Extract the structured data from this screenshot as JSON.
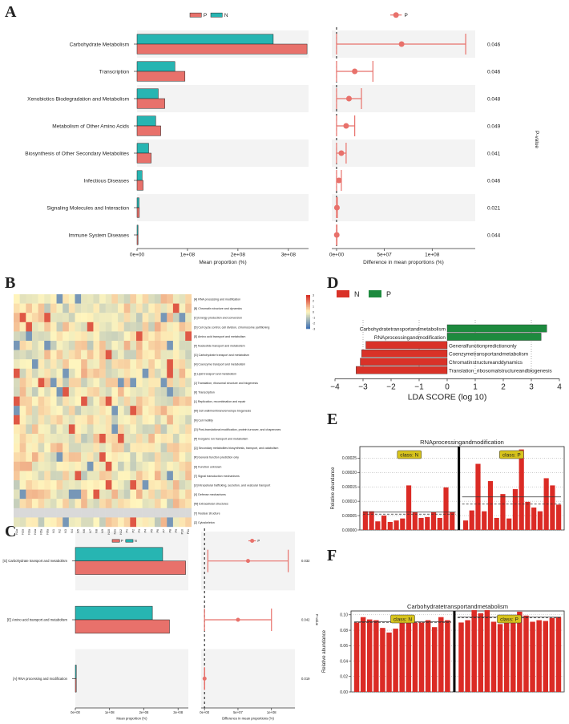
{
  "colors": {
    "P": "#e8716b",
    "N": "#27b5b2",
    "P_edge": "#8b2c25",
    "N_edge": "#136b68",
    "lda_N": "#d93228",
    "lda_P": "#1d8a3e",
    "bar_red": "#db2b25",
    "stripe": "#f3f3f3"
  },
  "panels": {
    "A": "A",
    "B": "B",
    "C": "C",
    "D": "D",
    "E": "E",
    "F": "F"
  },
  "chart_data": [
    {
      "id": "A",
      "type": "bar",
      "orientation": "horizontal",
      "legend_left": [
        "P",
        "N"
      ],
      "legend_right": [
        "P"
      ],
      "categories": [
        "Carbohydrate Metabolism",
        "Transcription",
        "Xenobiotics Biodegradation and Metabolism",
        "Metabolism of Other Amino Acids",
        "Biosynthesis of Other Secondary Metabolites",
        "Infectious Diseases",
        "Signaling Molecules and Interaction",
        "Immune System Diseases"
      ],
      "series": [
        {
          "name": "N",
          "values": [
            270000000,
            75000000,
            42000000,
            37000000,
            23000000,
            10000000,
            4000000,
            1000000
          ]
        },
        {
          "name": "P",
          "values": [
            337000000,
            95000000,
            55000000,
            47000000,
            28000000,
            12000000,
            4500000,
            1200000
          ]
        }
      ],
      "xlabel": "Mean proportion (%)",
      "xticks": [
        "0e+00",
        "1e+08",
        "2e+08",
        "3e+08"
      ],
      "xlim": [
        0,
        340000000
      ],
      "diff": {
        "mean": [
          68000000,
          19000000,
          13000000,
          10000000,
          5000000,
          2500000,
          400000,
          200000
        ],
        "lo": [
          0,
          0,
          0,
          0,
          0,
          0,
          0,
          0
        ],
        "hi": [
          135000000,
          38000000,
          26000000,
          19000000,
          10000000,
          5000000,
          800000,
          400000
        ]
      },
      "diff_xlabel": "Difference in mean proportions (%)",
      "diff_xticks": [
        "0e+00",
        "5e+07",
        "1e+08"
      ],
      "diff_xlim": [
        -5000000,
        145000000
      ],
      "pvalues": [
        "0.046",
        "0.046",
        "0.048",
        "0.049",
        "0.041",
        "0.046",
        "0.021",
        "0.044"
      ],
      "pvalue_label": "P-value"
    },
    {
      "id": "B",
      "type": "heatmap",
      "rows": [
        "[A] RNA processing and modification",
        "[B] Chromatin structure and dynamics",
        "[C] Energy production and conversion",
        "[D] Cell cycle control, cell division, chromosome partitioning",
        "[E] Amino acid transport and metabolism",
        "[F] Nucleotide transport and metabolism",
        "[G] Carbohydrate transport and metabolism",
        "[H] Coenzyme transport and metabolism",
        "[I] Lipid transport and metabolism",
        "[J] Translation, ribosomal structure and biogenesis",
        "[K] Transcription",
        "[L] Replication, recombination and repair",
        "[M] Cell wall/membrane/envelope biogenesis",
        "[N] Cell motility",
        "[O] Post-translational modification, protein turnover, and chaperones",
        "[P] Inorganic ion transport and metabolism",
        "[Q] Secondary metabolites biosynthesis, transport, and catabolism",
        "[R] General function prediction only",
        "[S] Function unknown",
        "[T] Signal transduction mechanisms",
        "[U] Intracellular trafficking, secretion, and vesicular transport",
        "[V] Defense mechanisms",
        "[W] Extracellular structures",
        "[Y] Nuclear structure",
        "[Z] Cytoskeleton"
      ],
      "columns": [
        "N1a",
        "N2a",
        "N3a",
        "N4a",
        "N5a",
        "N6a",
        "N1",
        "N2",
        "N3",
        "N4",
        "N5",
        "N6",
        "N7",
        "N8",
        "N9",
        "N10",
        "N11",
        "N12",
        "P1",
        "P2",
        "P3",
        "P4",
        "P5",
        "P6",
        "P7",
        "P8",
        "P9",
        "P10",
        "P11"
      ],
      "scale": {
        "min": -3,
        "max": 3,
        "ticks": [
          "3",
          "2",
          "1",
          "0",
          "-1",
          "-2",
          "-3"
        ]
      },
      "seed": 7
    },
    {
      "id": "C",
      "type": "bar",
      "orientation": "horizontal",
      "legend_left": [
        "P",
        "N"
      ],
      "legend_right": [
        "P"
      ],
      "categories": [
        "[G] Carbohydrate transport and metabolism",
        "[E] Amino acid transport and metabolism",
        "[A] RNA processing and modification"
      ],
      "series": [
        {
          "name": "N",
          "values": [
            255000000,
            225000000,
            500000
          ]
        },
        {
          "name": "P",
          "values": [
            322000000,
            275000000,
            600000
          ]
        }
      ],
      "xlabel": "Mean proportion (%)",
      "xticks": [
        "0e+00",
        "1e+08",
        "2e+08",
        "3e+08"
      ],
      "xlim": [
        0,
        330000000
      ],
      "diff": {
        "mean": [
          65000000,
          50000000,
          100000
        ],
        "lo": [
          5000000,
          0,
          0
        ],
        "hi": [
          125000000,
          100000000,
          300000
        ]
      },
      "diff_xlabel": "Difference in mean proportions (%)",
      "diff_xticks": [
        "0e+00",
        "5e+07",
        "1e+08"
      ],
      "diff_xlim": [
        -5000000,
        135000000
      ],
      "pvalues": [
        "0.032",
        "0.042",
        "0.019"
      ],
      "pvalue_label": "P-value"
    },
    {
      "id": "D",
      "type": "bar",
      "orientation": "horizontal",
      "legend": [
        "N",
        "P"
      ],
      "categories": [
        "Carbohydratetransportandmetabolism",
        "RNAprocessingandmodification",
        "Generalfunctionpredictiononly",
        "Coenzymetransportandmetabolism",
        "Chromatinstructureanddynamics",
        "Translation_ribosomalstructureandbiogenesis"
      ],
      "groups": [
        "P",
        "P",
        "N",
        "N",
        "N",
        "N"
      ],
      "values": [
        3.55,
        3.35,
        -2.9,
        -3.05,
        -3.1,
        -3.25
      ],
      "xlabel": "LDA SCORE (log 10)",
      "xticks": [
        "−4",
        "−3",
        "−2",
        "−1",
        "0",
        "1",
        "2",
        "3",
        "4"
      ],
      "xlim": [
        -4,
        4
      ]
    },
    {
      "id": "E",
      "type": "bar",
      "title": "RNAprocessingandmodification",
      "ylabel": "Relative abundance",
      "yticks": [
        "0.00000",
        "0.00005",
        "0.00010",
        "0.00015",
        "0.00020",
        "0.00025"
      ],
      "ylim": [
        0,
        0.00029
      ],
      "class_labels": [
        "class: N",
        "class: P"
      ],
      "N_values": [
        6.5e-05,
        6.5e-05,
        3e-05,
        5e-05,
        2.8e-05,
        3.3e-05,
        4e-05,
        0.000155,
        6.2e-05,
        4.2e-05,
        4.5e-05,
        6.2e-05,
        4.2e-05,
        0.000148,
        6.2e-05
      ],
      "P_values": [
        3.3e-05,
        6.8e-05,
        0.00023,
        6.5e-05,
        0.00017,
        4.2e-05,
        0.000125,
        4e-05,
        0.000142,
        0.00028,
        9.8e-05,
        7.8e-05,
        6.5e-05,
        0.00018,
        0.000155,
        8.8e-05
      ],
      "N_mean": 6.2e-05,
      "N_median": 5.5e-05,
      "P_mean": 0.000115,
      "P_median": 9e-05
    },
    {
      "id": "F",
      "type": "bar",
      "title": "Carbohydratetransportandmetabolism",
      "ylabel": "Relative abundance",
      "yticks": [
        "0.00",
        "0.02",
        "0.04",
        "0.06",
        "0.08",
        "0.10"
      ],
      "ylim": [
        0,
        0.105
      ],
      "class_labels": [
        "class: N",
        "class: P"
      ],
      "N_values": [
        0.09,
        0.097,
        0.094,
        0.093,
        0.083,
        0.077,
        0.082,
        0.091,
        0.094,
        0.09,
        0.09,
        0.093,
        0.084,
        0.097,
        0.093
      ],
      "P_values": [
        0.09,
        0.093,
        0.106,
        0.102,
        0.106,
        0.091,
        0.088,
        0.097,
        0.096,
        0.104,
        0.099,
        0.091,
        0.093,
        0.092,
        0.096,
        0.097
      ],
      "N_mean": 0.091,
      "N_median": 0.09,
      "P_mean": 0.097,
      "P_median": 0.096
    }
  ]
}
